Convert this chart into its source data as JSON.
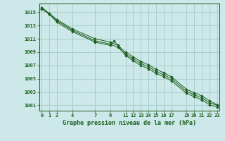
{
  "title": "Graphe pression niveau de la mer (hPa)",
  "background_color": "#cce8e8",
  "grid_color": "#aacece",
  "line_color": "#1a5c1a",
  "marker_color": "#1a5c1a",
  "xtick_vals": [
    0,
    1,
    2,
    4,
    7,
    9,
    11,
    12,
    13,
    14,
    15,
    16,
    17,
    19,
    20,
    21,
    22,
    23
  ],
  "xlim": [
    -0.3,
    23.3
  ],
  "ylim": [
    1000.2,
    1016.3
  ],
  "yticks": [
    1001,
    1003,
    1005,
    1007,
    1009,
    1011,
    1013,
    1015
  ],
  "series": [
    {
      "x": [
        0,
        1,
        2,
        4,
        7,
        9,
        10,
        11,
        12,
        13,
        14,
        15,
        16,
        17,
        19,
        20,
        21,
        22,
        23
      ],
      "y": [
        1015.7,
        1014.8,
        1013.9,
        1012.5,
        1011.0,
        1010.5,
        1010.0,
        1009.0,
        1008.3,
        1007.6,
        1007.1,
        1006.4,
        1005.9,
        1005.3,
        1003.4,
        1002.9,
        1002.4,
        1001.7,
        1001.1
      ]
    },
    {
      "x": [
        0,
        1,
        2,
        4,
        7,
        9,
        10,
        11,
        12,
        13,
        14,
        15,
        16,
        17,
        19,
        20,
        21,
        22,
        23
      ],
      "y": [
        1015.7,
        1014.75,
        1013.7,
        1012.3,
        1010.7,
        1010.2,
        1009.7,
        1008.7,
        1008.0,
        1007.3,
        1006.8,
        1006.1,
        1005.6,
        1005.0,
        1003.1,
        1002.6,
        1002.1,
        1001.4,
        1001.0
      ]
    },
    {
      "x": [
        0,
        1,
        2,
        4,
        7,
        9,
        9.5,
        11,
        12,
        13,
        14,
        15,
        16,
        17,
        19,
        20,
        21,
        22,
        23
      ],
      "y": [
        1015.5,
        1014.7,
        1013.5,
        1012.1,
        1010.5,
        1010.0,
        1010.7,
        1008.5,
        1007.7,
        1007.0,
        1006.5,
        1005.8,
        1005.3,
        1004.7,
        1002.8,
        1002.3,
        1001.8,
        1001.1,
        1000.7
      ]
    }
  ]
}
